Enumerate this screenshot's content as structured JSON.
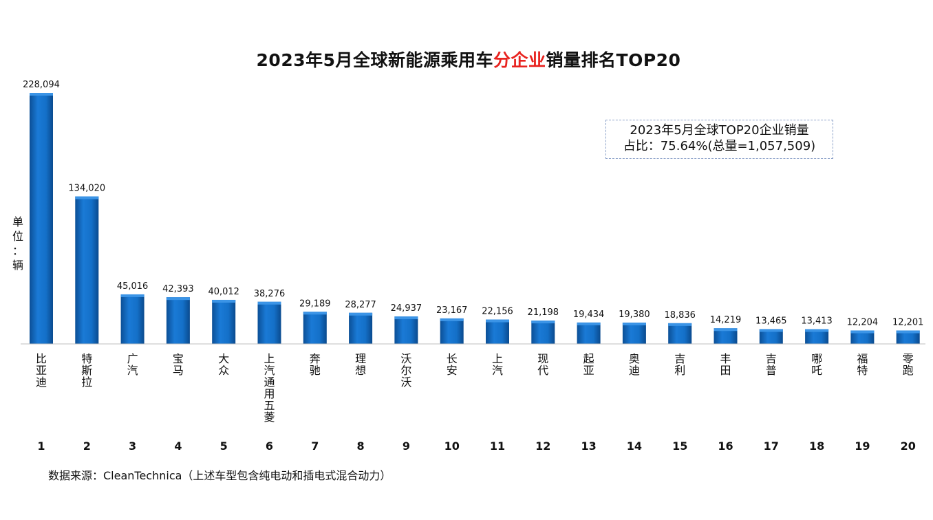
{
  "chart_data": {
    "type": "bar",
    "title": "2023年5月全球新能源乘用车分企业销量排名TOP20",
    "title_parts": [
      "2023年5月全球新能源乘用车",
      "分企业",
      "销量排名TOP20"
    ],
    "ylabel": "单位：辆",
    "ylabel_chars": [
      "单",
      "位",
      "：",
      "辆"
    ],
    "ylim": [
      0,
      228094
    ],
    "grid": false,
    "bar_color": "#1470c8",
    "highlight_color": "#e8231f",
    "ranks": [
      "1",
      "2",
      "3",
      "4",
      "5",
      "6",
      "7",
      "8",
      "9",
      "10",
      "11",
      "12",
      "13",
      "14",
      "15",
      "16",
      "17",
      "18",
      "19",
      "20"
    ],
    "categories": [
      "比亚迪",
      "特斯拉",
      "广汽",
      "宝马",
      "大众",
      "上汽通用五菱",
      "奔驰",
      "理想",
      "沃尔沃",
      "长安",
      "上汽",
      "现代",
      "起亚",
      "奥迪",
      "吉利",
      "丰田",
      "吉普",
      "哪吒",
      "福特",
      "零跑"
    ],
    "values": [
      228094,
      134020,
      45016,
      42393,
      40012,
      38276,
      29189,
      28277,
      24937,
      23167,
      22156,
      21198,
      19434,
      19380,
      18836,
      14219,
      13465,
      13413,
      12204,
      12201
    ],
    "value_labels": [
      "228,094",
      "134,020",
      "45,016",
      "42,393",
      "40,012",
      "38,276",
      "29,189",
      "28,277",
      "24,937",
      "23,167",
      "22,156",
      "21,198",
      "19,434",
      "19,380",
      "18,836",
      "14,219",
      "13,465",
      "13,413",
      "12,204",
      "12,201"
    ],
    "annotation": [
      "2023年5月全球TOP20企业销量",
      "占比：75.64%(总量=1,057,509)"
    ],
    "source": "数据来源：CleanTechnica（上述车型包含纯电动和插电式混合动力）"
  }
}
